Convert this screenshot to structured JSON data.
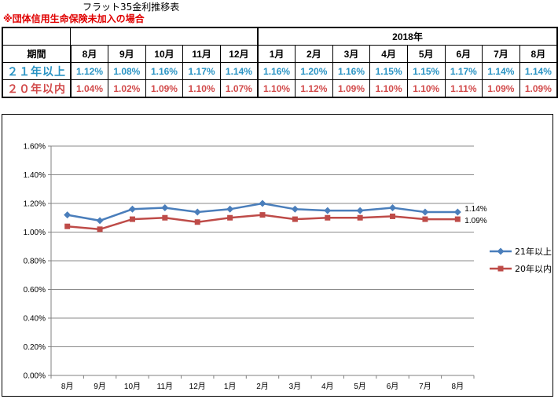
{
  "title": "フラット35金利推移表",
  "note": "※団体信用生命保険未加入の場合",
  "table": {
    "year_header": "2018年",
    "label_header": "期間",
    "months": [
      "8月",
      "9月",
      "10月",
      "11月",
      "12月",
      "1月",
      "2月",
      "3月",
      "4月",
      "5月",
      "6月",
      "7月",
      "8月"
    ],
    "rows": [
      {
        "label": "２１年以上",
        "color": "#2b94c4",
        "values": [
          "1.12%",
          "1.08%",
          "1.16%",
          "1.17%",
          "1.14%",
          "1.16%",
          "1.20%",
          "1.16%",
          "1.15%",
          "1.15%",
          "1.17%",
          "1.14%",
          "1.14%"
        ]
      },
      {
        "label": "２０年以内",
        "color": "#d24b4b",
        "values": [
          "1.04%",
          "1.02%",
          "1.09%",
          "1.10%",
          "1.07%",
          "1.10%",
          "1.12%",
          "1.09%",
          "1.10%",
          "1.10%",
          "1.11%",
          "1.09%",
          "1.09%"
        ]
      }
    ]
  },
  "chart_data": {
    "type": "line",
    "categories": [
      "8月",
      "9月",
      "10月",
      "11月",
      "12月",
      "1月",
      "2月",
      "3月",
      "4月",
      "5月",
      "6月",
      "7月",
      "8月"
    ],
    "ylim": [
      0,
      1.6
    ],
    "yticks": [
      "0.00%",
      "0.20%",
      "0.40%",
      "0.60%",
      "0.80%",
      "1.00%",
      "1.20%",
      "1.40%",
      "1.60%"
    ],
    "ytick_values": [
      0,
      0.2,
      0.4,
      0.6,
      0.8,
      1.0,
      1.2,
      1.4,
      1.6
    ],
    "grid": true,
    "legend_position": "right",
    "series": [
      {
        "name": "21年以上",
        "color": "#4a7ebb",
        "marker": "diamond",
        "values": [
          1.12,
          1.08,
          1.16,
          1.17,
          1.14,
          1.16,
          1.2,
          1.16,
          1.15,
          1.15,
          1.17,
          1.14,
          1.14
        ],
        "end_label": "1.14%"
      },
      {
        "name": "20年以内",
        "color": "#be4b48",
        "marker": "square",
        "values": [
          1.04,
          1.02,
          1.09,
          1.1,
          1.07,
          1.1,
          1.12,
          1.09,
          1.1,
          1.1,
          1.11,
          1.09,
          1.09
        ],
        "end_label": "1.09%"
      }
    ]
  }
}
